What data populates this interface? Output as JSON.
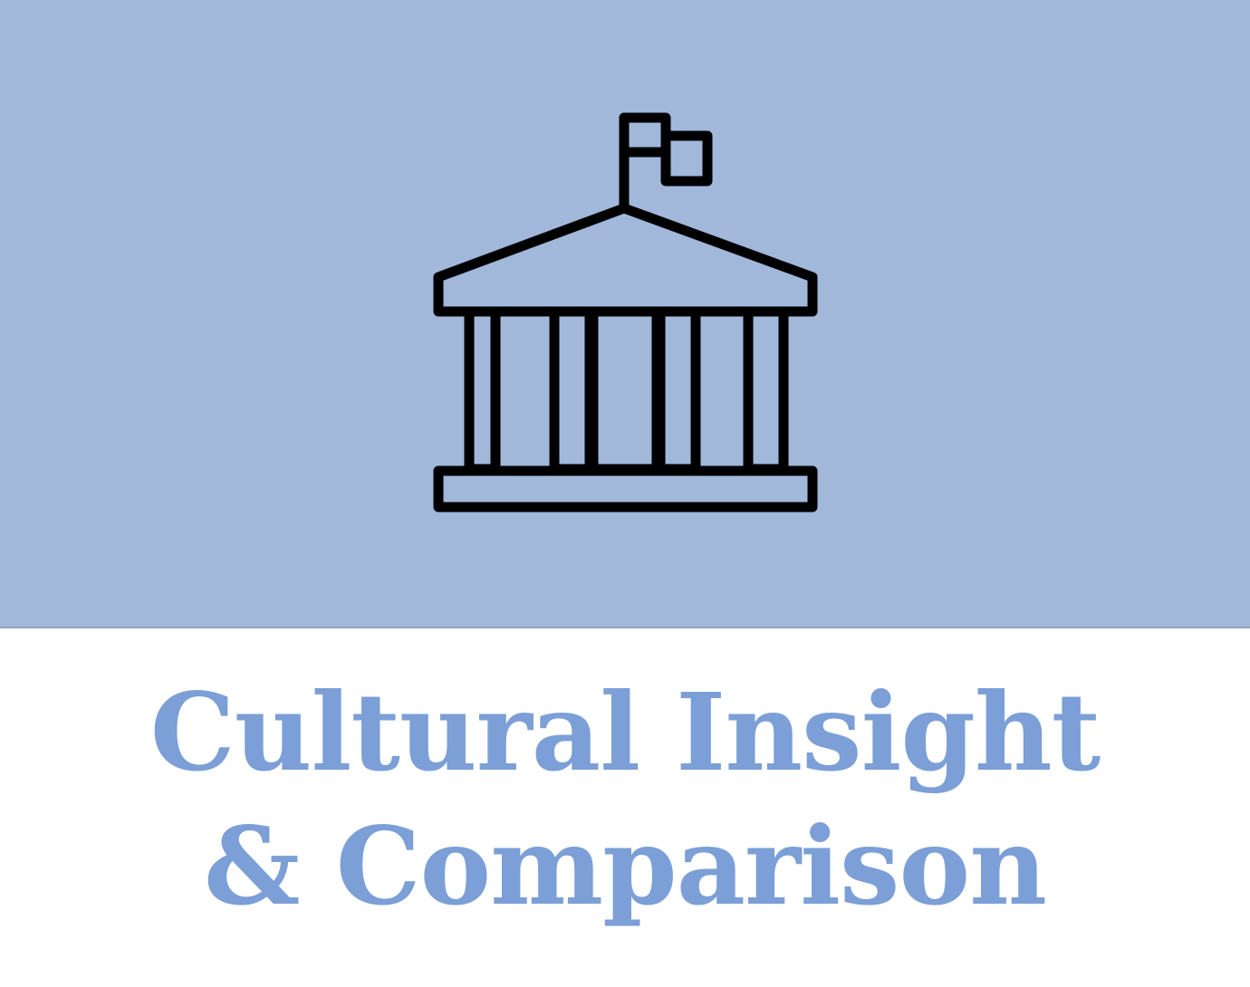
{
  "card": {
    "icon": "government-building-icon",
    "title_line1": "Cultural Insight",
    "title_line2": "& Comparison",
    "colors": {
      "banner": "#a1b8da",
      "title": "#7b9fd6",
      "icon_stroke": "#000000",
      "background": "#ffffff"
    }
  }
}
